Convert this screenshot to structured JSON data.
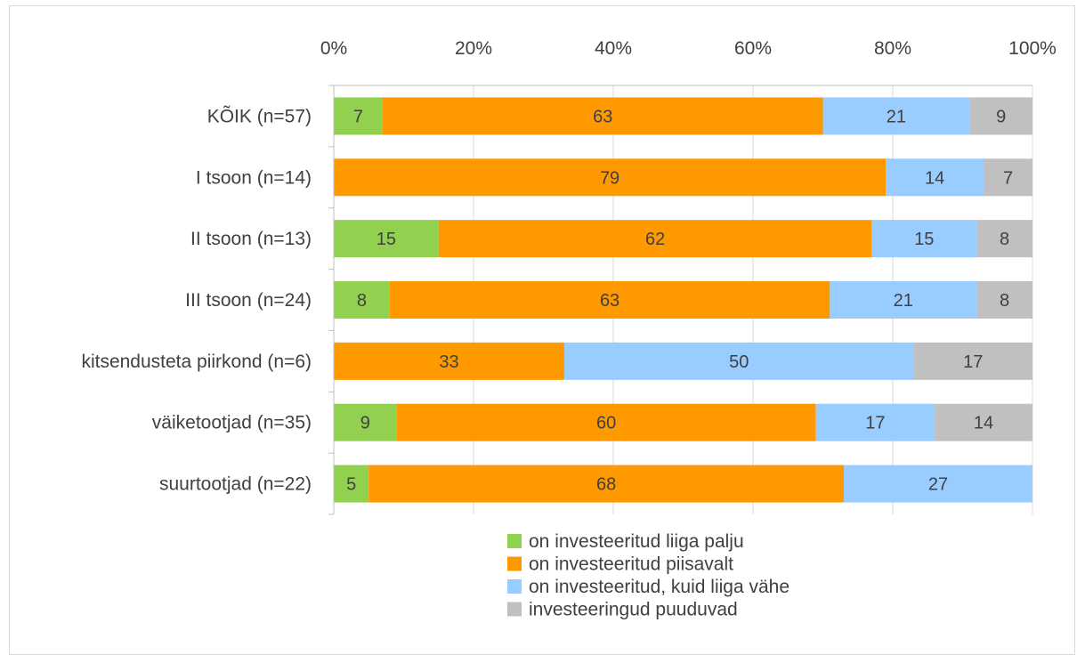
{
  "chart_data": {
    "type": "bar",
    "orientation": "horizontal",
    "stacked": true,
    "percent_stacked": true,
    "x_axis_position": "top",
    "xlim": [
      0,
      100
    ],
    "x_ticks": [
      "0%",
      "20%",
      "40%",
      "60%",
      "80%",
      "100%"
    ],
    "grid": true,
    "legend_position": "bottom",
    "categories": [
      "KÕIK (n=57)",
      "I tsoon (n=14)",
      "II tsoon (n=13)",
      "III tsoon (n=24)",
      "kitsendusteta piirkond (n=6)",
      "väiketootjad (n=35)",
      "suurtootjad (n=22)"
    ],
    "series": [
      {
        "name": "on investeeritud liiga palju",
        "color": "#92d050",
        "values": [
          7,
          0,
          15,
          8,
          0,
          9,
          5
        ]
      },
      {
        "name": "on investeeritud piisavalt",
        "color": "#ff9900",
        "values": [
          63,
          79,
          62,
          63,
          33,
          60,
          68
        ]
      },
      {
        "name": "on investeeritud, kuid liiga vähe",
        "color": "#99ccff",
        "values": [
          21,
          14,
          15,
          21,
          50,
          17,
          27
        ]
      },
      {
        "name": "investeeringud puuduvad",
        "color": "#c0c0c0",
        "values": [
          9,
          7,
          8,
          8,
          17,
          14,
          0
        ]
      }
    ]
  }
}
